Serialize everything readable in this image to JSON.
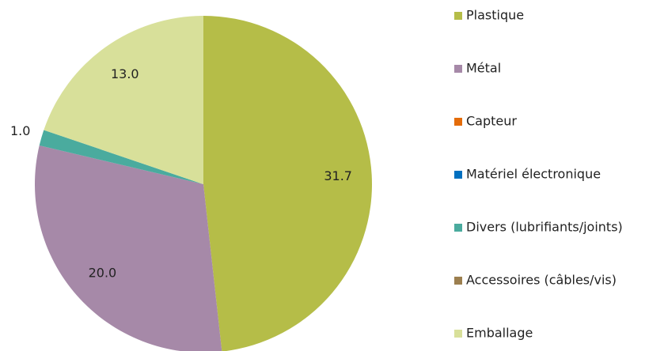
{
  "chart_data": {
    "type": "pie",
    "categories": [
      "Plastique",
      "Métal",
      "Capteur",
      "Matériel électronique",
      "Divers (lubrifiants/joints)",
      "Accessoires (câbles/vis)",
      "Emballage"
    ],
    "values": [
      31.7,
      20.0,
      0,
      0,
      1.0,
      0,
      13.0
    ],
    "value_labels": [
      "31.7",
      "20.0",
      null,
      null,
      "1.0",
      null,
      "13.0"
    ],
    "colors": [
      "#b5bd48",
      "#a689a8",
      "#e46c0a",
      "#0070c0",
      "#4aab9e",
      "#9c7f4f",
      "#d8e09a"
    ],
    "legend": "right"
  }
}
